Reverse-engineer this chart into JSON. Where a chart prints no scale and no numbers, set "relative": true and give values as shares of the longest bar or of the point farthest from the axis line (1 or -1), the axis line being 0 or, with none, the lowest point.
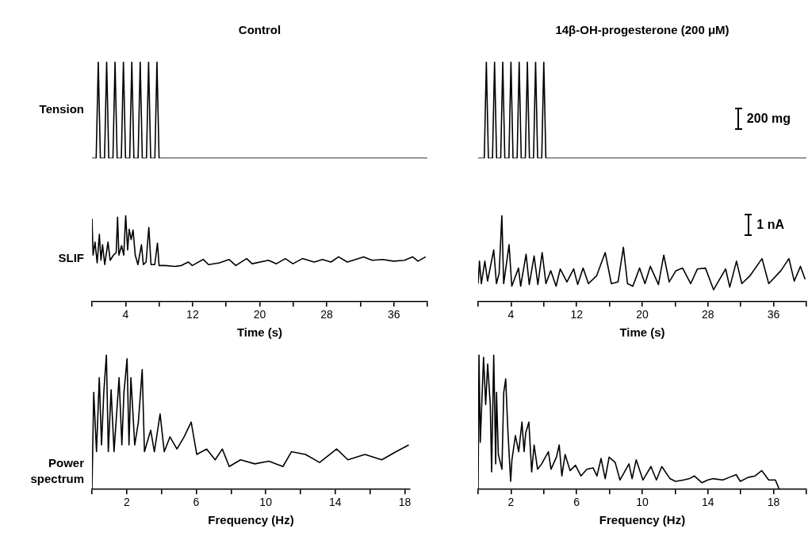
{
  "chart_data": [
    {
      "type": "line",
      "title": "Control",
      "ylabel": "Tension",
      "relative": true,
      "color": "#000000",
      "marker": "none",
      "tick_labels": false,
      "categories": [
        null,
        null,
        null,
        null,
        null,
        null,
        null,
        null,
        null,
        null,
        null,
        null,
        null,
        null,
        null,
        null,
        null,
        null,
        null,
        null,
        null,
        null,
        null,
        null,
        null,
        null,
        null,
        null,
        null,
        null,
        null,
        null,
        null,
        null,
        null,
        null,
        null,
        null,
        null,
        null,
        null,
        null,
        null,
        null,
        null,
        null,
        null,
        null,
        null,
        null,
        null,
        null,
        null,
        null,
        null,
        null,
        null,
        null,
        null,
        null,
        null,
        null,
        null,
        null,
        null,
        null,
        null,
        null,
        null,
        null,
        null,
        null,
        null,
        null,
        null,
        null,
        null,
        null,
        null,
        null,
        null,
        null,
        null,
        null,
        null,
        null,
        null,
        null,
        null,
        null,
        null,
        null,
        null,
        null,
        null,
        null,
        null,
        null,
        null,
        null,
        null,
        null,
        null,
        null,
        null,
        null,
        null,
        null,
        null,
        null,
        null,
        null,
        null,
        null,
        null,
        null,
        null,
        null,
        null,
        null,
        null,
        null,
        null,
        null,
        null,
        null,
        null,
        null,
        null,
        null,
        null,
        null,
        null,
        null,
        null,
        null,
        null,
        null,
        null,
        null,
        null,
        null,
        null,
        null,
        null,
        null,
        null,
        null,
        null,
        null,
        null,
        null,
        null,
        null,
        null,
        null,
        null,
        null,
        null,
        null,
        null
      ],
      "values": [
        0,
        0,
        0,
        1,
        0,
        0,
        0,
        1,
        0,
        0,
        0,
        1,
        0,
        0,
        0,
        1,
        0,
        0,
        0,
        1,
        0,
        0,
        0,
        1,
        0,
        0,
        0,
        1,
        0,
        0,
        0,
        1,
        0,
        0,
        0,
        0,
        0,
        0,
        0,
        0,
        0,
        0,
        0,
        0,
        0,
        0,
        0,
        0,
        0,
        0,
        0,
        0,
        0,
        0,
        0,
        0,
        0,
        0,
        0,
        0,
        0,
        0,
        0,
        0,
        0,
        0,
        0,
        0,
        0,
        0,
        0,
        0,
        0,
        0,
        0,
        0,
        0,
        0,
        0,
        0,
        0,
        0,
        0,
        0,
        0,
        0,
        0,
        0,
        0,
        0,
        0,
        0,
        0,
        0,
        0,
        0,
        0,
        0,
        0,
        0,
        0,
        0,
        0,
        0,
        0,
        0,
        0,
        0,
        0,
        0,
        0,
        0,
        0,
        0,
        0,
        0,
        0,
        0,
        0,
        0,
        0,
        0,
        0,
        0,
        0,
        0,
        0,
        0,
        0,
        0,
        0,
        0,
        0,
        0,
        0,
        0,
        0,
        0,
        0,
        0,
        0,
        0,
        0,
        0,
        0,
        0,
        0,
        0,
        0,
        0,
        0,
        0,
        0,
        0,
        0,
        0,
        0,
        0,
        0,
        0,
        0
      ]
    },
    {
      "type": "line",
      "title": "14β-OH-progesterone (200 μM)",
      "relative": true,
      "color": "#000000",
      "marker": "none",
      "tick_labels": false,
      "annotations": [
        "200 mg"
      ],
      "categories": [
        null,
        null,
        null,
        null,
        null,
        null,
        null,
        null,
        null,
        null,
        null,
        null,
        null,
        null,
        null,
        null,
        null,
        null,
        null,
        null,
        null,
        null,
        null,
        null,
        null,
        null,
        null,
        null,
        null,
        null,
        null,
        null,
        null,
        null,
        null,
        null,
        null,
        null,
        null,
        null,
        null,
        null,
        null,
        null,
        null,
        null,
        null,
        null,
        null,
        null,
        null,
        null,
        null,
        null,
        null,
        null,
        null,
        null,
        null,
        null,
        null,
        null,
        null,
        null,
        null,
        null,
        null,
        null,
        null,
        null,
        null,
        null,
        null,
        null,
        null,
        null,
        null,
        null,
        null,
        null,
        null,
        null,
        null,
        null,
        null,
        null,
        null,
        null,
        null,
        null,
        null,
        null,
        null,
        null,
        null,
        null,
        null,
        null,
        null,
        null,
        null,
        null,
        null,
        null,
        null,
        null,
        null,
        null,
        null,
        null,
        null,
        null,
        null,
        null,
        null,
        null,
        null,
        null,
        null,
        null,
        null,
        null,
        null,
        null,
        null,
        null,
        null,
        null,
        null,
        null,
        null,
        null,
        null,
        null,
        null,
        null,
        null,
        null,
        null,
        null,
        null,
        null,
        null,
        null,
        null,
        null,
        null,
        null,
        null,
        null,
        null,
        null,
        null,
        null,
        null,
        null,
        null,
        null,
        null,
        null,
        null
      ],
      "values": [
        0,
        0,
        0,
        0,
        1,
        0,
        0,
        0,
        1,
        0,
        0,
        0,
        1,
        0,
        0,
        0,
        1,
        0,
        0,
        0,
        1,
        0,
        0,
        0,
        1,
        0,
        0,
        0,
        1,
        0,
        0,
        0,
        1,
        0,
        0,
        0,
        0,
        0,
        0,
        0,
        0,
        0,
        0,
        0,
        0,
        0,
        0,
        0,
        0,
        0,
        0,
        0,
        0,
        0,
        0,
        0,
        0,
        0,
        0,
        0,
        0,
        0,
        0,
        0,
        0,
        0,
        0,
        0,
        0,
        0,
        0,
        0,
        0,
        0,
        0,
        0,
        0,
        0,
        0,
        0,
        0,
        0,
        0,
        0,
        0,
        0,
        0,
        0,
        0,
        0,
        0,
        0,
        0,
        0,
        0,
        0,
        0,
        0,
        0,
        0,
        0,
        0,
        0,
        0,
        0,
        0,
        0,
        0,
        0,
        0,
        0,
        0,
        0,
        0,
        0,
        0,
        0,
        0,
        0,
        0,
        0,
        0,
        0,
        0,
        0,
        0,
        0,
        0,
        0,
        0,
        0,
        0,
        0,
        0,
        0,
        0,
        0,
        0,
        0,
        0,
        0,
        0,
        0,
        0,
        0,
        0,
        0,
        0,
        0,
        0,
        0,
        0,
        0,
        0,
        0,
        0,
        0,
        0,
        0,
        0,
        0
      ]
    },
    {
      "type": "line",
      "ylabel": "SLIF",
      "xlabel": "Time (s)",
      "relative": true,
      "color": "#000000",
      "marker": "none",
      "xlim": [
        0,
        40
      ],
      "xticks": [
        {
          "value": 0,
          "label": null
        },
        4,
        {
          "value": 8,
          "label": null
        },
        12,
        {
          "value": 16,
          "label": null
        },
        20,
        {
          "value": 24,
          "label": null
        },
        28,
        {
          "value": 32,
          "label": null
        },
        36,
        {
          "value": 40,
          "label": null
        }
      ],
      "x": [
        0,
        0.13,
        0.36,
        0.62,
        0.88,
        1.07,
        1.26,
        1.52,
        1.91,
        2.17,
        2.56,
        2.89,
        3.05,
        3.21,
        3.53,
        3.79,
        4.02,
        4.25,
        4.44,
        4.67,
        4.9,
        5.16,
        5.48,
        5.9,
        6.13,
        6.45,
        6.78,
        7.04,
        7.49,
        7.81,
        8.0,
        8.72,
        9.86,
        10.67,
        11.48,
        11.96,
        13.26,
        13.9,
        15.2,
        16.34,
        17.15,
        18.45,
        19.1,
        21.04,
        22.0,
        23.05,
        23.96,
        25.1,
        26.5,
        27.5,
        28.5,
        29.4,
        30.45,
        32.4,
        33.4,
        34.66,
        35.96,
        37.26,
        38.23,
        38.88,
        39.8
      ],
      "values": [
        0.96,
        0.54,
        0.69,
        0.45,
        0.78,
        0.48,
        0.66,
        0.43,
        0.69,
        0.48,
        0.54,
        0.57,
        0.98,
        0.54,
        0.65,
        0.54,
        1.0,
        0.6,
        0.84,
        0.72,
        0.83,
        0.54,
        0.43,
        0.66,
        0.43,
        0.46,
        0.86,
        0.43,
        0.43,
        0.68,
        0.42,
        0.42,
        0.41,
        0.42,
        0.46,
        0.42,
        0.49,
        0.43,
        0.45,
        0.49,
        0.42,
        0.5,
        0.44,
        0.48,
        0.44,
        0.5,
        0.44,
        0.5,
        0.46,
        0.49,
        0.46,
        0.52,
        0.46,
        0.52,
        0.48,
        0.49,
        0.47,
        0.48,
        0.52,
        0.47,
        0.52
      ]
    },
    {
      "type": "line",
      "xlabel": "Time (s)",
      "relative": true,
      "color": "#000000",
      "marker": "none",
      "xlim": [
        0,
        40
      ],
      "annotations": [
        "1 nA"
      ],
      "xticks": [
        {
          "value": 0,
          "label": null
        },
        4,
        {
          "value": 8,
          "label": null
        },
        12,
        {
          "value": 16,
          "label": null
        },
        20,
        {
          "value": 24,
          "label": null
        },
        28,
        {
          "value": 32,
          "label": null
        },
        36,
        {
          "value": 40,
          "label": null
        }
      ],
      "x": [
        0,
        0.16,
        0.39,
        0.82,
        1.15,
        1.9,
        2.23,
        2.56,
        2.89,
        3.11,
        3.77,
        4.1,
        4.92,
        5.18,
        5.84,
        6.23,
        6.82,
        7.28,
        7.8,
        8.26,
        8.85,
        9.5,
        10.0,
        10.82,
        11.64,
        12.13,
        12.79,
        13.44,
        14.43,
        15.48,
        16.23,
        17.05,
        17.7,
        18.2,
        18.85,
        19.67,
        20.33,
        20.98,
        21.97,
        22.62,
        23.28,
        24.1,
        24.92,
        25.9,
        26.72,
        27.7,
        28.69,
        30.16,
        30.66,
        31.48,
        32.13,
        33.11,
        34.59,
        35.41,
        36.89,
        37.87,
        38.52,
        39.28,
        39.84
      ],
      "values": [
        0.21,
        0.47,
        0.21,
        0.47,
        0.24,
        0.6,
        0.21,
        0.33,
        1.0,
        0.21,
        0.66,
        0.18,
        0.39,
        0.18,
        0.55,
        0.2,
        0.53,
        0.2,
        0.57,
        0.21,
        0.36,
        0.18,
        0.38,
        0.23,
        0.38,
        0.2,
        0.39,
        0.21,
        0.3,
        0.57,
        0.21,
        0.23,
        0.63,
        0.21,
        0.18,
        0.39,
        0.21,
        0.41,
        0.2,
        0.54,
        0.23,
        0.36,
        0.39,
        0.21,
        0.38,
        0.39,
        0.14,
        0.38,
        0.17,
        0.47,
        0.21,
        0.3,
        0.5,
        0.21,
        0.36,
        0.5,
        0.24,
        0.41,
        0.26
      ]
    },
    {
      "type": "line",
      "ylabel": "Power spectrum",
      "xlabel": "Frequency (Hz)",
      "relative": true,
      "color": "#000000",
      "marker": "none",
      "xlim": [
        0,
        18.3
      ],
      "xticks": [
        {
          "value": 0,
          "label": null
        },
        2,
        {
          "value": 4,
          "label": null
        },
        6,
        {
          "value": 8,
          "label": null
        },
        10,
        {
          "value": 12,
          "label": null
        },
        14,
        {
          "value": 16,
          "label": null
        },
        18
      ],
      "x": [
        0,
        0.1,
        0.26,
        0.42,
        0.55,
        0.68,
        0.83,
        0.94,
        1.1,
        1.27,
        1.56,
        1.72,
        1.84,
        2.02,
        2.13,
        2.24,
        2.46,
        2.67,
        2.89,
        3.02,
        3.38,
        3.59,
        3.92,
        4.16,
        4.49,
        4.89,
        5.3,
        5.71,
        6.03,
        6.6,
        7.09,
        7.5,
        7.9,
        8.55,
        9.37,
        10.18,
        10.99,
        11.48,
        12.29,
        13.1,
        14.08,
        14.73,
        15.71,
        16.68,
        17.5,
        18.23
      ],
      "values": [
        0,
        0.72,
        0.28,
        0.83,
        0.33,
        0.72,
        1.0,
        0.28,
        0.74,
        0.28,
        0.83,
        0.33,
        0.72,
        0.97,
        0.33,
        0.83,
        0.33,
        0.5,
        0.89,
        0.28,
        0.44,
        0.28,
        0.56,
        0.28,
        0.39,
        0.3,
        0.39,
        0.5,
        0.26,
        0.3,
        0.22,
        0.3,
        0.17,
        0.22,
        0.19,
        0.21,
        0.17,
        0.28,
        0.26,
        0.2,
        0.3,
        0.22,
        0.26,
        0.22,
        0.28,
        0.33
      ]
    },
    {
      "type": "line",
      "xlabel": "Frequency (Hz)",
      "relative": true,
      "color": "#000000",
      "marker": "none",
      "xlim": [
        0,
        20
      ],
      "xticks": [
        {
          "value": 0,
          "label": null
        },
        2,
        {
          "value": 4,
          "label": null
        },
        6,
        {
          "value": 8,
          "label": null
        },
        10,
        {
          "value": 12,
          "label": null
        },
        14,
        {
          "value": 16,
          "label": null
        },
        18,
        {
          "value": 20,
          "label": null
        }
      ],
      "x": [
        0,
        0.05,
        0.13,
        0.33,
        0.46,
        0.58,
        0.74,
        0.82,
        0.95,
        1.07,
        1.12,
        1.23,
        1.45,
        1.56,
        1.68,
        1.81,
        1.98,
        2.06,
        2.27,
        2.47,
        2.67,
        2.8,
        2.9,
        3.09,
        3.26,
        3.41,
        3.62,
        3.87,
        4.28,
        4.44,
        4.77,
        4.94,
        5.1,
        5.3,
        5.6,
        5.93,
        6.26,
        6.62,
        7.0,
        7.24,
        7.49,
        7.74,
        7.98,
        8.35,
        8.64,
        9.19,
        9.38,
        9.63,
        10.04,
        10.53,
        10.86,
        11.19,
        11.69,
        12.02,
        12.51,
        12.87,
        13.17,
        13.63,
        13.99,
        14.32,
        14.9,
        15.31,
        15.72,
        15.97,
        16.46,
        16.87,
        17.28,
        17.7,
        18.11,
        18.35
      ],
      "values": [
        0,
        1.0,
        0.35,
        0.98,
        0.63,
        0.93,
        0.63,
        0.13,
        1.0,
        0.19,
        0.72,
        0.26,
        0.15,
        0.72,
        0.82,
        0.44,
        0.06,
        0.22,
        0.4,
        0.28,
        0.5,
        0.28,
        0.42,
        0.5,
        0.13,
        0.33,
        0.15,
        0.19,
        0.28,
        0.15,
        0.24,
        0.33,
        0.1,
        0.26,
        0.14,
        0.18,
        0.1,
        0.15,
        0.16,
        0.1,
        0.23,
        0.08,
        0.24,
        0.2,
        0.07,
        0.19,
        0.08,
        0.22,
        0.07,
        0.17,
        0.07,
        0.17,
        0.08,
        0.06,
        0.07,
        0.08,
        0.1,
        0.05,
        0.07,
        0.08,
        0.07,
        0.09,
        0.11,
        0.06,
        0.09,
        0.1,
        0.14,
        0.07,
        0.07,
        0
      ]
    }
  ]
}
